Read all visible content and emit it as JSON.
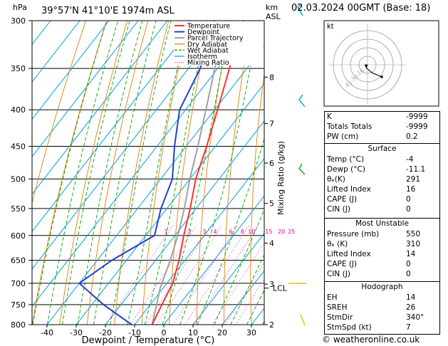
{
  "header": {
    "location": "39°57'N  41°10'E  1974m  ASL",
    "datetime": "02.03.2024  00GMT  (Base: 18)",
    "hpa_label": "hPa",
    "km_label": "km",
    "asl_label": "ASL"
  },
  "legend": [
    "Temperature",
    "Dewpoint",
    "Parcel Trajectory",
    "Dry Adiabat",
    "Wet Adiabat",
    "Isotherm",
    "Mixing Ratio"
  ],
  "colors": {
    "temperature": "#ff3030",
    "dewpoint": "#2040d0",
    "parcel": "#a0a0a0",
    "dry_adiabat": "#e08000",
    "wet_adiabat": "#00a000",
    "isotherm": "#00a0e0",
    "mixing_ratio": "#e000a0",
    "wind": "#00a0c0"
  },
  "chart_data": {
    "type": "skew-t",
    "xlabel": "Dewpoint / Temperature (°C)",
    "ylabel_right": "Mixing Ratio (g/kg)",
    "pressure_ticks": [
      300,
      350,
      400,
      450,
      500,
      550,
      600,
      650,
      700,
      750,
      800
    ],
    "temp_ticks": [
      -40,
      -30,
      -20,
      -10,
      0,
      10,
      20,
      30
    ],
    "km_ticks": [
      {
        "km": "8",
        "p": 360
      },
      {
        "km": "7",
        "p": 418
      },
      {
        "km": "6",
        "p": 475
      },
      {
        "km": "5",
        "p": 541
      },
      {
        "km": "4",
        "p": 615
      },
      {
        "km": "3",
        "p": 702
      },
      {
        "km": "2",
        "p": 800
      }
    ],
    "lcl_label": "LCL",
    "lcl_p": 711,
    "mixing_ratio_labels": [
      "1",
      "2",
      "3",
      "4",
      "6",
      "8",
      "10",
      "15",
      "20",
      "25"
    ],
    "mixing_ratio_values": [
      1,
      2,
      3,
      4,
      6,
      8,
      10,
      15,
      20,
      25
    ],
    "temperature": [
      {
        "p": 800,
        "t": -4
      },
      {
        "p": 750,
        "t": -6
      },
      {
        "p": 700,
        "t": -8
      },
      {
        "p": 650,
        "t": -12
      },
      {
        "p": 600,
        "t": -17
      },
      {
        "p": 550,
        "t": -22
      },
      {
        "p": 500,
        "t": -28
      },
      {
        "p": 450,
        "t": -33
      },
      {
        "p": 400,
        "t": -39
      },
      {
        "p": 350,
        "t": -46
      },
      {
        "p": 300,
        "t": -54
      }
    ],
    "dewpoint": [
      {
        "p": 800,
        "t": -11
      },
      {
        "p": 750,
        "t": -26
      },
      {
        "p": 700,
        "t": -40
      },
      {
        "p": 650,
        "t": -35
      },
      {
        "p": 600,
        "t": -27
      },
      {
        "p": 550,
        "t": -32
      },
      {
        "p": 500,
        "t": -36
      },
      {
        "p": 450,
        "t": -44
      },
      {
        "p": 400,
        "t": -52
      },
      {
        "p": 350,
        "t": -56
      },
      {
        "p": 300,
        "t": -64
      }
    ],
    "parcel": [
      {
        "p": 800,
        "t": -4
      },
      {
        "p": 711,
        "t": -11
      },
      {
        "p": 650,
        "t": -15
      },
      {
        "p": 600,
        "t": -19
      },
      {
        "p": 550,
        "t": -24
      },
      {
        "p": 500,
        "t": -30
      },
      {
        "p": 450,
        "t": -36
      },
      {
        "p": 400,
        "t": -43
      },
      {
        "p": 350,
        "t": -51
      },
      {
        "p": 300,
        "t": -60
      }
    ],
    "xlim": [
      -45,
      35
    ],
    "plim": [
      300,
      800
    ]
  },
  "hodograph": {
    "label": "kt",
    "ring_labels": [
      "16",
      "30",
      "45"
    ]
  },
  "indices": {
    "k_label": "K",
    "k_value": "-9999",
    "tt_label": "Totals Totals",
    "tt_value": "-9999",
    "pw_label": "PW (cm)",
    "pw_value": "0.2"
  },
  "surface": {
    "title": "Surface",
    "rows": [
      {
        "label": "Temp (°C)",
        "value": "-4"
      },
      {
        "label": "Dewp (°C)",
        "value": "-11.1"
      },
      {
        "label": "θₑ(K)",
        "value": "291"
      },
      {
        "label": "Lifted Index",
        "value": "16"
      },
      {
        "label": "CAPE (J)",
        "value": "0"
      },
      {
        "label": "CIN (J)",
        "value": "0"
      }
    ]
  },
  "unstable": {
    "title": "Most Unstable",
    "rows": [
      {
        "label": "Pressure (mb)",
        "value": "550"
      },
      {
        "label": "θₑ (K)",
        "value": "310"
      },
      {
        "label": "Lifted Index",
        "value": "14"
      },
      {
        "label": "CAPE (J)",
        "value": "0"
      },
      {
        "label": "CIN (J)",
        "value": "0"
      }
    ]
  },
  "hodo_table": {
    "title": "Hodograph",
    "rows": [
      {
        "label": "EH",
        "value": "14"
      },
      {
        "label": "SREH",
        "value": "26"
      },
      {
        "label": "StmDir",
        "value": "340°"
      },
      {
        "label": "StmSpd (kt)",
        "value": "7"
      }
    ]
  },
  "copyright": "© weatheronline.co.uk"
}
